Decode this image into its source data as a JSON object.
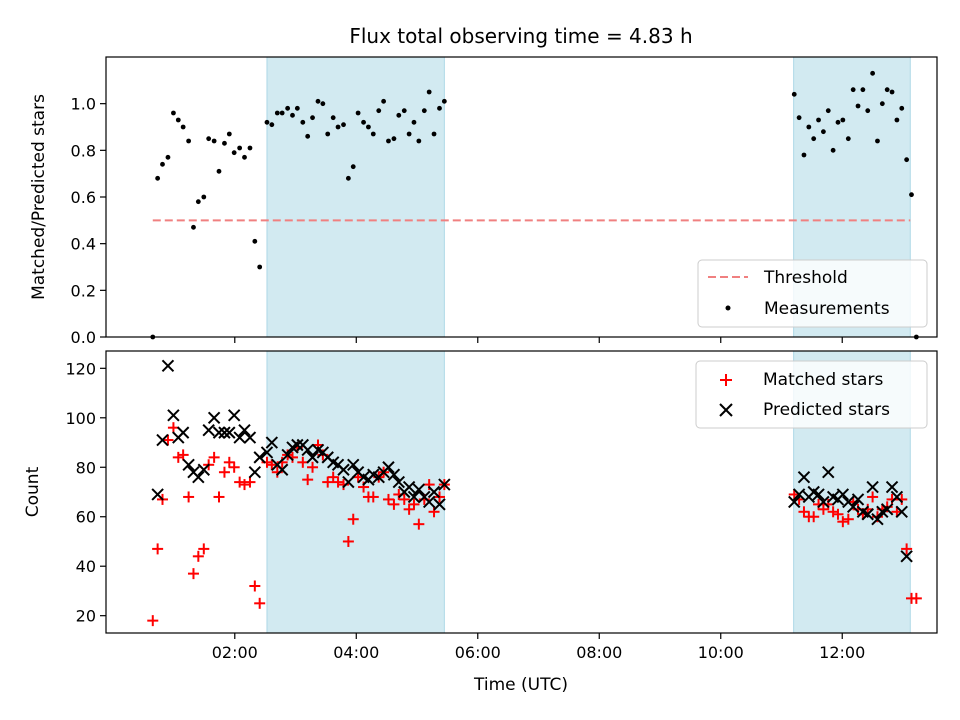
{
  "chart_data": {
    "title": "Flux total observing time = 4.83 h",
    "xlabel": "Time (UTC)",
    "xlim_hours": [
      -0.12,
      13.56
    ],
    "x_tick_hours": [
      2,
      4,
      6,
      8,
      10,
      12
    ],
    "x_tick_labels": [
      "02:00",
      "04:00",
      "06:00",
      "08:00",
      "10:00",
      "12:00"
    ],
    "shaded_intervals_hours": [
      [
        2.53,
        5.45
      ],
      [
        11.2,
        13.12
      ]
    ],
    "shade_color": "#add8e6",
    "top": {
      "type": "scatter",
      "ylabel": "Matched/Predicted stars",
      "ylim": [
        0,
        1.2
      ],
      "y_ticks": [
        0.0,
        0.2,
        0.4,
        0.6,
        0.8,
        1.0
      ],
      "y_tick_labels": [
        "0.0",
        "0.2",
        "0.4",
        "0.6",
        "0.8",
        "1.0"
      ],
      "threshold": {
        "name": "Threshold",
        "y": 0.5,
        "x_range": [
          0.65,
          13.12
        ],
        "color": "#f08080"
      },
      "measurements_name": "Measurements",
      "measurements": [
        [
          0.65,
          0.0
        ],
        [
          0.73,
          0.68
        ],
        [
          0.81,
          0.74
        ],
        [
          0.9,
          0.77
        ],
        [
          0.99,
          0.96
        ],
        [
          1.07,
          0.93
        ],
        [
          1.15,
          0.9
        ],
        [
          1.24,
          0.84
        ],
        [
          1.32,
          0.47
        ],
        [
          1.4,
          0.58
        ],
        [
          1.49,
          0.6
        ],
        [
          1.57,
          0.85
        ],
        [
          1.66,
          0.84
        ],
        [
          1.74,
          0.71
        ],
        [
          1.83,
          0.83
        ],
        [
          1.91,
          0.87
        ],
        [
          1.99,
          0.79
        ],
        [
          2.08,
          0.81
        ],
        [
          2.16,
          0.77
        ],
        [
          2.25,
          0.81
        ],
        [
          2.33,
          0.41
        ],
        [
          2.41,
          0.3
        ],
        [
          2.53,
          0.92
        ],
        [
          2.61,
          0.91
        ],
        [
          2.7,
          0.96
        ],
        [
          2.78,
          0.96
        ],
        [
          2.87,
          0.98
        ],
        [
          2.95,
          0.95
        ],
        [
          3.03,
          0.98
        ],
        [
          3.12,
          0.92
        ],
        [
          3.2,
          0.86
        ],
        [
          3.28,
          0.94
        ],
        [
          3.37,
          1.01
        ],
        [
          3.45,
          1.0
        ],
        [
          3.53,
          0.87
        ],
        [
          3.62,
          0.94
        ],
        [
          3.7,
          0.9
        ],
        [
          3.79,
          0.91
        ],
        [
          3.87,
          0.68
        ],
        [
          3.95,
          0.73
        ],
        [
          4.03,
          0.96
        ],
        [
          4.12,
          0.92
        ],
        [
          4.2,
          0.9
        ],
        [
          4.28,
          0.87
        ],
        [
          4.37,
          0.97
        ],
        [
          4.45,
          1.01
        ],
        [
          4.53,
          0.84
        ],
        [
          4.62,
          0.85
        ],
        [
          4.7,
          0.95
        ],
        [
          4.79,
          0.97
        ],
        [
          4.87,
          0.87
        ],
        [
          4.95,
          0.92
        ],
        [
          5.03,
          0.84
        ],
        [
          5.12,
          0.97
        ],
        [
          5.2,
          1.05
        ],
        [
          5.28,
          0.87
        ],
        [
          5.37,
          0.98
        ],
        [
          5.45,
          1.01
        ],
        [
          11.21,
          1.04
        ],
        [
          11.29,
          0.94
        ],
        [
          11.37,
          0.78
        ],
        [
          11.45,
          0.9
        ],
        [
          11.53,
          0.85
        ],
        [
          11.61,
          0.93
        ],
        [
          11.69,
          0.88
        ],
        [
          11.77,
          0.97
        ],
        [
          11.85,
          0.8
        ],
        [
          11.93,
          0.92
        ],
        [
          12.01,
          0.93
        ],
        [
          12.1,
          0.85
        ],
        [
          12.18,
          1.06
        ],
        [
          12.26,
          0.99
        ],
        [
          12.34,
          1.06
        ],
        [
          12.42,
          0.97
        ],
        [
          12.5,
          1.13
        ],
        [
          12.58,
          0.84
        ],
        [
          12.66,
          1.0
        ],
        [
          12.74,
          1.06
        ],
        [
          12.82,
          1.05
        ],
        [
          12.9,
          0.93
        ],
        [
          12.98,
          0.98
        ],
        [
          13.06,
          0.76
        ],
        [
          13.14,
          0.61
        ],
        [
          13.22,
          0.0
        ]
      ]
    },
    "bottom": {
      "type": "scatter",
      "ylabel": "Count",
      "ylim": [
        13,
        127
      ],
      "y_ticks": [
        20,
        40,
        60,
        80,
        100,
        120
      ],
      "y_tick_labels": [
        "20",
        "40",
        "60",
        "80",
        "100",
        "120"
      ],
      "series": [
        {
          "name": "Matched stars",
          "color": "#ff0000",
          "marker": "plus",
          "points": [
            [
              0.65,
              18
            ],
            [
              0.73,
              47
            ],
            [
              0.81,
              67
            ],
            [
              0.9,
              91
            ],
            [
              0.99,
              96
            ],
            [
              1.07,
              84
            ],
            [
              1.15,
              85
            ],
            [
              1.24,
              68
            ],
            [
              1.32,
              37
            ],
            [
              1.4,
              44
            ],
            [
              1.49,
              47
            ],
            [
              1.57,
              81
            ],
            [
              1.66,
              84
            ],
            [
              1.74,
              68
            ],
            [
              1.83,
              78
            ],
            [
              1.91,
              82
            ],
            [
              1.99,
              80
            ],
            [
              2.08,
              74
            ],
            [
              2.16,
              73
            ],
            [
              2.25,
              74
            ],
            [
              2.33,
              32
            ],
            [
              2.41,
              25
            ],
            [
              2.53,
              82
            ],
            [
              2.61,
              81
            ],
            [
              2.7,
              78
            ],
            [
              2.78,
              82
            ],
            [
              2.87,
              85
            ],
            [
              2.95,
              84
            ],
            [
              3.03,
              88
            ],
            [
              3.12,
              82
            ],
            [
              3.2,
              75
            ],
            [
              3.28,
              80
            ],
            [
              3.37,
              89
            ],
            [
              3.45,
              85
            ],
            [
              3.53,
              74
            ],
            [
              3.62,
              76
            ],
            [
              3.7,
              74
            ],
            [
              3.79,
              73
            ],
            [
              3.87,
              50
            ],
            [
              3.95,
              59
            ],
            [
              4.03,
              76
            ],
            [
              4.12,
              72
            ],
            [
              4.2,
              68
            ],
            [
              4.28,
              68
            ],
            [
              4.37,
              76
            ],
            [
              4.45,
              78
            ],
            [
              4.53,
              67
            ],
            [
              4.62,
              65
            ],
            [
              4.7,
              69
            ],
            [
              4.79,
              67
            ],
            [
              4.87,
              63
            ],
            [
              4.95,
              65
            ],
            [
              5.03,
              57
            ],
            [
              5.12,
              67
            ],
            [
              5.2,
              73
            ],
            [
              5.28,
              62
            ],
            [
              5.37,
              68
            ],
            [
              5.45,
              73
            ],
            [
              11.21,
              69
            ],
            [
              11.29,
              67
            ],
            [
              11.37,
              62
            ],
            [
              11.45,
              60
            ],
            [
              11.53,
              60
            ],
            [
              11.61,
              65
            ],
            [
              11.69,
              63
            ],
            [
              11.77,
              65
            ],
            [
              11.85,
              62
            ],
            [
              11.93,
              61
            ],
            [
              12.01,
              58
            ],
            [
              12.1,
              59
            ],
            [
              12.18,
              66
            ],
            [
              12.26,
              63
            ],
            [
              12.34,
              61
            ],
            [
              12.42,
              63
            ],
            [
              12.5,
              68
            ],
            [
              12.58,
              60
            ],
            [
              12.66,
              63
            ],
            [
              12.74,
              64
            ],
            [
              12.82,
              67
            ],
            [
              12.9,
              62
            ],
            [
              12.98,
              67
            ],
            [
              13.06,
              47
            ],
            [
              13.14,
              27
            ],
            [
              13.22,
              27
            ]
          ]
        },
        {
          "name": "Predicted stars",
          "color": "#000000",
          "marker": "x",
          "points": [
            [
              0.73,
              69
            ],
            [
              0.81,
              91
            ],
            [
              0.9,
              121
            ],
            [
              0.99,
              101
            ],
            [
              1.07,
              92
            ],
            [
              1.15,
              94
            ],
            [
              1.24,
              81
            ],
            [
              1.32,
              78
            ],
            [
              1.4,
              76
            ],
            [
              1.49,
              79
            ],
            [
              1.57,
              95
            ],
            [
              1.66,
              100
            ],
            [
              1.74,
              94
            ],
            [
              1.83,
              94
            ],
            [
              1.91,
              94
            ],
            [
              1.99,
              101
            ],
            [
              2.08,
              92
            ],
            [
              2.16,
              95
            ],
            [
              2.25,
              92
            ],
            [
              2.33,
              78
            ],
            [
              2.41,
              84
            ],
            [
              2.53,
              86
            ],
            [
              2.61,
              90
            ],
            [
              2.7,
              81
            ],
            [
              2.78,
              79
            ],
            [
              2.87,
              85
            ],
            [
              2.95,
              88
            ],
            [
              3.03,
              89
            ],
            [
              3.12,
              89
            ],
            [
              3.2,
              87
            ],
            [
              3.28,
              84
            ],
            [
              3.37,
              87
            ],
            [
              3.45,
              86
            ],
            [
              3.53,
              84
            ],
            [
              3.62,
              82
            ],
            [
              3.7,
              81
            ],
            [
              3.79,
              79
            ],
            [
              3.87,
              74
            ],
            [
              3.95,
              81
            ],
            [
              4.03,
              78
            ],
            [
              4.12,
              76
            ],
            [
              4.2,
              75
            ],
            [
              4.28,
              77
            ],
            [
              4.37,
              76
            ],
            [
              4.45,
              78
            ],
            [
              4.53,
              80
            ],
            [
              4.62,
              77
            ],
            [
              4.7,
              74
            ],
            [
              4.79,
              70
            ],
            [
              4.87,
              72
            ],
            [
              4.95,
              68
            ],
            [
              5.03,
              71
            ],
            [
              5.12,
              68
            ],
            [
              5.2,
              66
            ],
            [
              5.28,
              70
            ],
            [
              5.37,
              65
            ],
            [
              5.45,
              73
            ],
            [
              11.21,
              66
            ],
            [
              11.29,
              69
            ],
            [
              11.37,
              76
            ],
            [
              11.45,
              68
            ],
            [
              11.53,
              70
            ],
            [
              11.61,
              69
            ],
            [
              11.69,
              66
            ],
            [
              11.77,
              78
            ],
            [
              11.85,
              68
            ],
            [
              11.93,
              67
            ],
            [
              12.01,
              69
            ],
            [
              12.1,
              66
            ],
            [
              12.18,
              64
            ],
            [
              12.26,
              67
            ],
            [
              12.34,
              62
            ],
            [
              12.42,
              61
            ],
            [
              12.5,
              72
            ],
            [
              12.58,
              59
            ],
            [
              12.66,
              62
            ],
            [
              12.74,
              63
            ],
            [
              12.82,
              72
            ],
            [
              12.9,
              68
            ],
            [
              12.98,
              62
            ],
            [
              13.06,
              44
            ]
          ]
        }
      ]
    }
  }
}
